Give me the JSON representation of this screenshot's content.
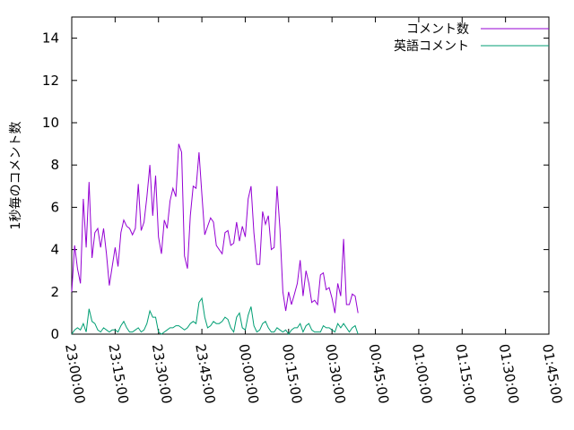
{
  "chart_data": {
    "type": "line",
    "title": "",
    "xlabel": "",
    "ylabel": "1秒毎のコメント数",
    "ylim": [
      0,
      15
    ],
    "yticks": [
      0,
      2,
      4,
      6,
      8,
      10,
      12,
      14
    ],
    "xlim": [
      "23:00:00",
      "01:45:00"
    ],
    "xticks": [
      "23:00:00",
      "23:15:00",
      "23:30:00",
      "23:45:00",
      "00:00:00",
      "00:15:00",
      "00:30:00",
      "00:45:00",
      "01:00:00",
      "01:15:00",
      "01:30:00",
      "01:45:00"
    ],
    "x_interval_seconds": 60,
    "grid": false,
    "legend_position": "top-right",
    "series": [
      {
        "name": "コメント数",
        "color": "#9400d3",
        "values": [
          2.0,
          4.2,
          3.1,
          2.4,
          6.4,
          4.1,
          7.2,
          3.6,
          4.8,
          5.0,
          4.1,
          5.0,
          3.8,
          2.3,
          3.2,
          4.1,
          3.2,
          4.8,
          5.4,
          5.1,
          5.0,
          4.7,
          5.0,
          7.1,
          4.9,
          5.3,
          6.5,
          8.0,
          5.6,
          7.5,
          4.6,
          3.8,
          5.4,
          5.0,
          6.3,
          6.9,
          6.5,
          9.0,
          8.6,
          3.7,
          3.1,
          5.6,
          7.0,
          6.9,
          8.6,
          6.6,
          4.7,
          5.1,
          5.5,
          5.3,
          4.2,
          4.0,
          3.8,
          4.8,
          4.9,
          4.2,
          4.3,
          5.3,
          4.4,
          5.1,
          4.6,
          6.4,
          7.0,
          4.8,
          3.3,
          3.3,
          5.8,
          5.2,
          5.6,
          4.0,
          4.1,
          7.0,
          5.0,
          2.0,
          1.1,
          2.0,
          1.4,
          1.9,
          2.4,
          3.5,
          1.8,
          3.0,
          2.4,
          1.5,
          1.6,
          1.4,
          2.8,
          2.9,
          2.1,
          2.2,
          1.7,
          1.0,
          2.4,
          1.8,
          4.5,
          1.4,
          1.4,
          1.9,
          1.8,
          1.0
        ]
      },
      {
        "name": "英語コメント",
        "color": "#009e73",
        "values": [
          0.0,
          0.2,
          0.3,
          0.2,
          0.5,
          0.1,
          1.2,
          0.6,
          0.5,
          0.2,
          0.1,
          0.3,
          0.2,
          0.1,
          0.2,
          0.2,
          0.1,
          0.4,
          0.6,
          0.3,
          0.1,
          0.1,
          0.2,
          0.3,
          0.1,
          0.2,
          0.5,
          1.1,
          0.8,
          0.8,
          0.1,
          0.0,
          0.1,
          0.2,
          0.3,
          0.3,
          0.4,
          0.4,
          0.3,
          0.2,
          0.3,
          0.5,
          0.6,
          0.5,
          1.5,
          1.7,
          0.8,
          0.3,
          0.4,
          0.6,
          0.5,
          0.5,
          0.6,
          0.8,
          0.7,
          0.3,
          0.1,
          0.8,
          1.0,
          0.3,
          0.2,
          0.9,
          1.3,
          0.4,
          0.1,
          0.2,
          0.5,
          0.6,
          0.3,
          0.1,
          0.1,
          0.3,
          0.2,
          0.1,
          0.2,
          0.0,
          0.2,
          0.3,
          0.3,
          0.5,
          0.1,
          0.4,
          0.5,
          0.2,
          0.1,
          0.1,
          0.1,
          0.4,
          0.3,
          0.3,
          0.2,
          0.1,
          0.5,
          0.3,
          0.5,
          0.3,
          0.1,
          0.3,
          0.4,
          0.0
        ]
      }
    ]
  }
}
